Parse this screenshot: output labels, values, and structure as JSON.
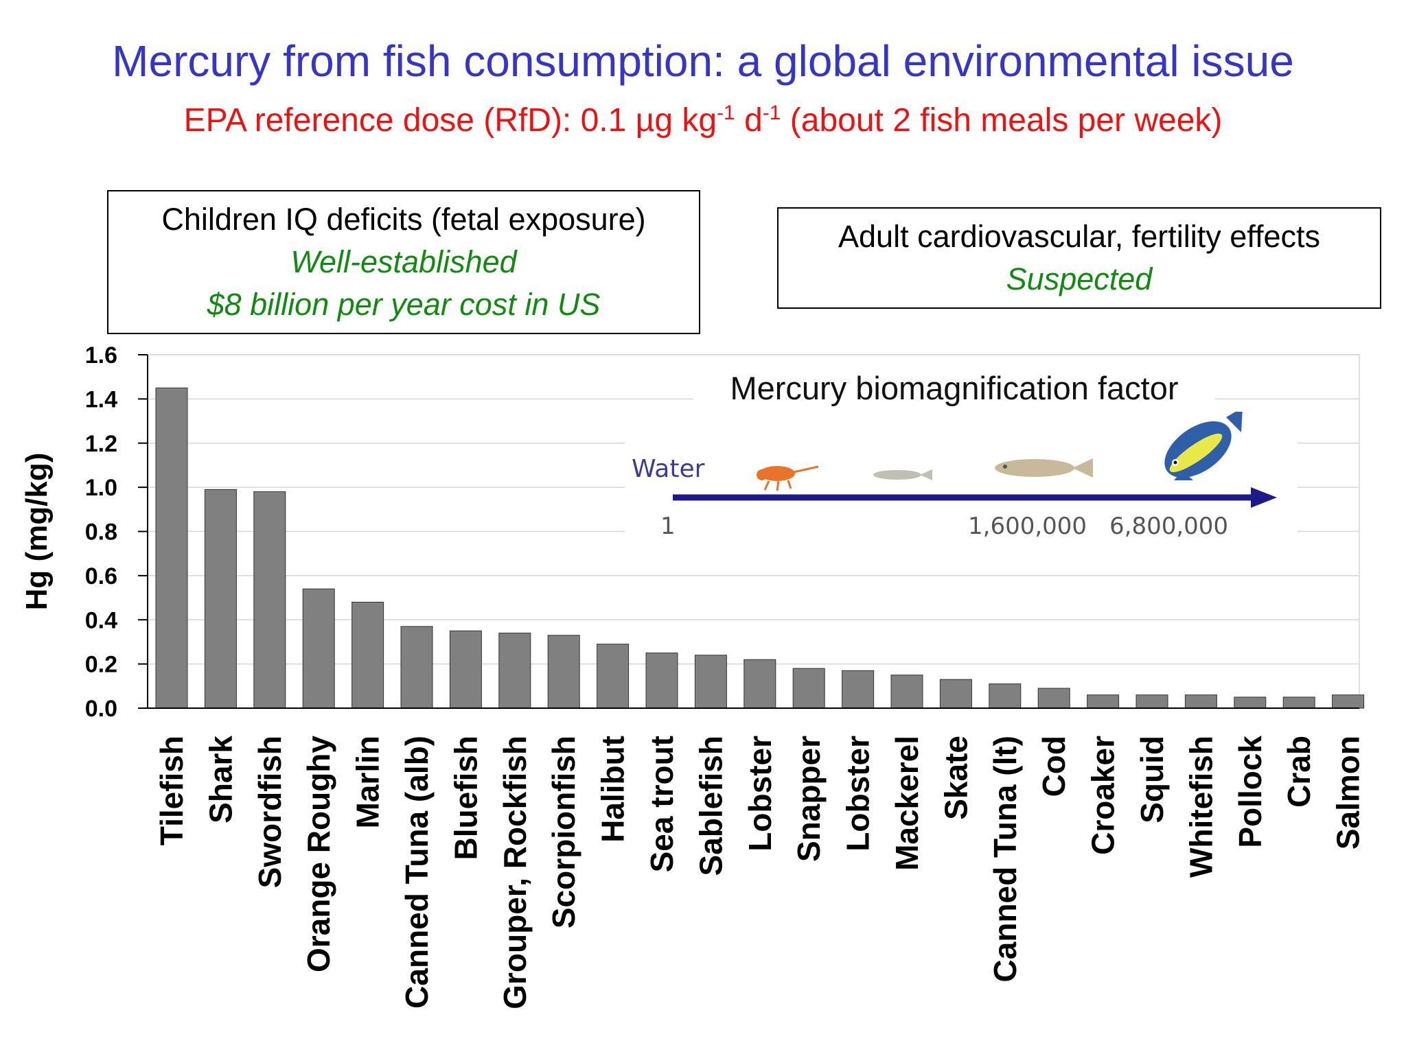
{
  "header": {
    "title": "Mercury from fish consumption: a global environmental issue",
    "subtitle_pre": "EPA reference dose (RfD): 0.1 µg kg",
    "subtitle_sup1": "-1",
    "subtitle_mid": " d",
    "subtitle_sup2": "-1",
    "subtitle_post": " (about 2 fish meals per week)"
  },
  "box_children": {
    "line1": "Children IQ deficits (fetal exposure)",
    "line2": "Well-established",
    "line3": "$8 billion per year cost in US"
  },
  "box_adult": {
    "line1": "Adult cardiovascular, fertility  effects",
    "line2": "Suspected"
  },
  "inset": {
    "title": "Mercury biomagnification factor",
    "water_label": "Water",
    "values": [
      "1",
      "1,600,000",
      "6,800,000"
    ]
  },
  "colors": {
    "title": "#3535c8",
    "subtitle": "#ee1111",
    "green_text": "#128a12",
    "bar": "#808080",
    "arrow": "#1d1a8a"
  },
  "chart_data": {
    "type": "bar",
    "ylabel": "Hg (mg/kg)",
    "xlabel": "",
    "ylim": [
      0,
      1.6
    ],
    "yticks": [
      "0.0",
      "0.2",
      "0.4",
      "0.6",
      "0.8",
      "1.0",
      "1.2",
      "1.4",
      "1.6"
    ],
    "grid": true,
    "categories": [
      "Tilefish",
      "Shark",
      "Swordfish",
      "Orange Roughy",
      "Marlin",
      "Canned Tuna (alb)",
      "Bluefish",
      "Grouper, Rockfish",
      "Scorpionfish",
      "Halibut",
      "Sea trout",
      "Sablefish",
      "Lobster",
      "Snapper",
      "Lobster",
      "Mackerel",
      "Skate",
      "Canned Tuna (lt)",
      "Cod",
      "Croaker",
      "Squid",
      "Whitefish",
      "Pollock",
      "Crab",
      "Salmon"
    ],
    "values": [
      1.45,
      0.99,
      0.98,
      0.54,
      0.48,
      0.37,
      0.35,
      0.34,
      0.33,
      0.29,
      0.25,
      0.24,
      0.22,
      0.18,
      0.17,
      0.15,
      0.13,
      0.11,
      0.09,
      0.06,
      0.06,
      0.06,
      0.05,
      0.05,
      0.06
    ]
  }
}
